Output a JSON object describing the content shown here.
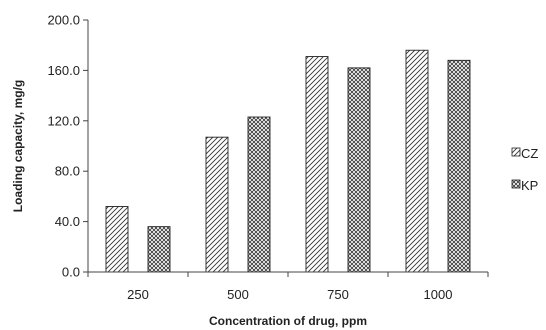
{
  "chart_data": {
    "type": "bar",
    "title": "",
    "xlabel": "Concentration of drug, ppm",
    "ylabel": "Loading capacity, mg/g",
    "categories": [
      "250",
      "500",
      "750",
      "1000"
    ],
    "series": [
      {
        "name": "CZ",
        "values": [
          52,
          107,
          171,
          176
        ],
        "pattern": "diagonal-hatch"
      },
      {
        "name": "KP",
        "values": [
          36,
          123,
          162,
          168
        ],
        "pattern": "cross-hatch"
      }
    ],
    "ylim": [
      0,
      200
    ],
    "yticks": [
      "0.0",
      "40.0",
      "80.0",
      "120.0",
      "160.0",
      "200.0"
    ],
    "grid": false,
    "legend_position": "right",
    "colors": {
      "bar_stroke": "#222222",
      "axis": "#444444",
      "fill": "#ffffff"
    }
  }
}
